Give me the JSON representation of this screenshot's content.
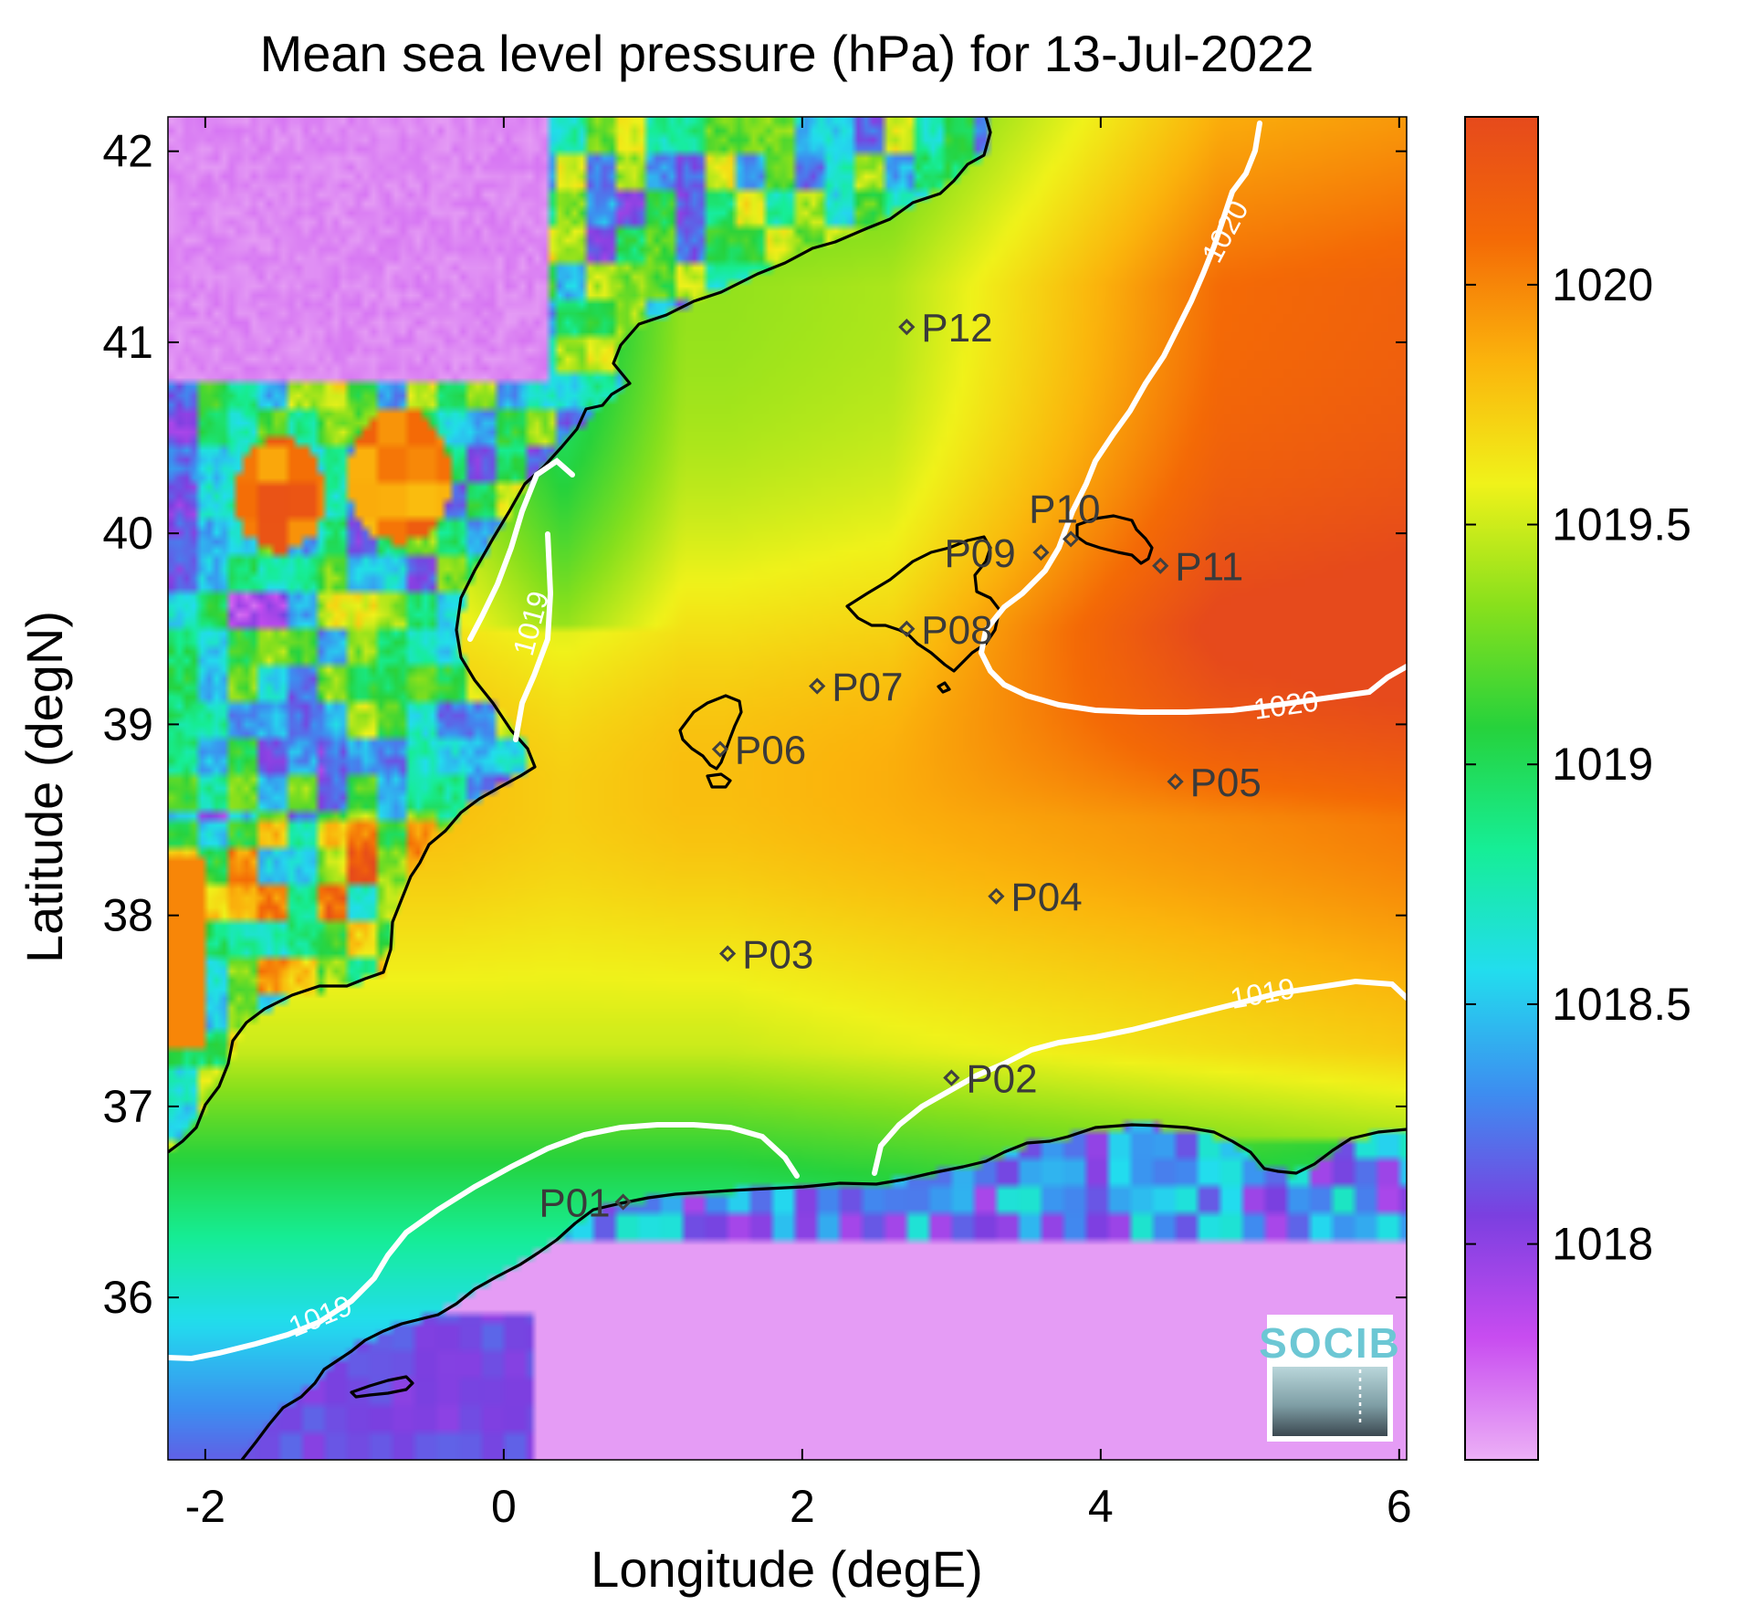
{
  "title": "Mean sea level pressure (hPa) for 13-Jul-2022",
  "x_axis": {
    "label": "Longitude (degE)",
    "ticks": [
      "-2",
      "0",
      "2",
      "4",
      "6"
    ],
    "tick_values": [
      -2,
      0,
      2,
      4,
      6
    ],
    "range": [
      -2.25,
      6.05
    ]
  },
  "y_axis": {
    "label": "Latitude (degN)",
    "ticks": [
      "36",
      "37",
      "38",
      "39",
      "40",
      "41",
      "42"
    ],
    "tick_values": [
      36,
      37,
      38,
      39,
      40,
      41,
      42
    ],
    "range": [
      35.15,
      42.18
    ]
  },
  "colorbar": {
    "ticks": [
      "1018",
      "1018.5",
      "1019",
      "1019.5",
      "1020"
    ],
    "tick_values": [
      1018,
      1018.5,
      1019,
      1019.5,
      1020
    ],
    "range": [
      1017.55,
      1020.35
    ],
    "colormap": [
      "#ecb0f6",
      "#c84cf0",
      "#7b3fe0",
      "#3d8df0",
      "#22ddee",
      "#16ee96",
      "#26d23c",
      "#88e01c",
      "#f0f21a",
      "#fbb40c",
      "#f46a06",
      "#e64a1c"
    ]
  },
  "colors": {
    "land_low": "#ebb3f5",
    "coast": "#000000",
    "contour": "#ffffff",
    "station": "#404040",
    "frame": "#000000"
  },
  "stations": [
    {
      "id": "P01",
      "lon": 0.8,
      "lat": 36.5
    },
    {
      "id": "P02",
      "lon": 3.0,
      "lat": 37.15
    },
    {
      "id": "P03",
      "lon": 1.5,
      "lat": 37.8
    },
    {
      "id": "P04",
      "lon": 3.3,
      "lat": 38.1
    },
    {
      "id": "P05",
      "lon": 4.5,
      "lat": 38.7
    },
    {
      "id": "P06",
      "lon": 1.45,
      "lat": 38.87
    },
    {
      "id": "P07",
      "lon": 2.1,
      "lat": 39.2
    },
    {
      "id": "P08",
      "lon": 2.7,
      "lat": 39.5
    },
    {
      "id": "P09",
      "lon": 3.6,
      "lat": 39.9
    },
    {
      "id": "P10",
      "lon": 3.8,
      "lat": 39.97
    },
    {
      "id": "P11",
      "lon": 4.4,
      "lat": 39.83
    },
    {
      "id": "P12",
      "lon": 2.7,
      "lat": 41.08
    }
  ],
  "contours": [
    {
      "level": "1019",
      "label": "1019"
    },
    {
      "level": "1020",
      "label": "1020"
    }
  ],
  "logo": {
    "text": "SOCIB"
  },
  "chart_data": {
    "type": "heatmap",
    "title": "Mean sea level pressure (hPa) for 13-Jul-2022",
    "xlabel": "Longitude (degE)",
    "ylabel": "Latitude (degN)",
    "xlim": [
      -2.25,
      6.05
    ],
    "ylim": [
      35.15,
      42.18
    ],
    "zlim": [
      1017.55,
      1020.35
    ],
    "contour_levels": [
      1019,
      1020
    ],
    "stations": [
      "P01",
      "P02",
      "P03",
      "P04",
      "P05",
      "P06",
      "P07",
      "P08",
      "P09",
      "P10",
      "P11",
      "P12"
    ]
  }
}
